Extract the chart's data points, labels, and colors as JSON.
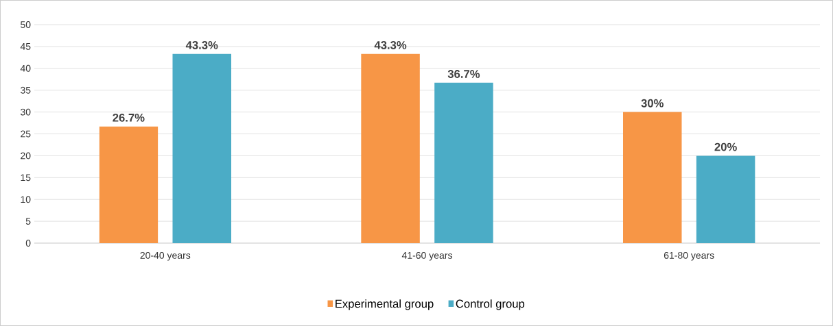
{
  "chart_data": {
    "type": "bar",
    "categories": [
      "20-40 years",
      "41-60 years",
      "61-80 years"
    ],
    "series": [
      {
        "name": "Experimental group",
        "color": "#f79646",
        "values": [
          26.7,
          43.3,
          30
        ],
        "value_labels": [
          "26.7%",
          "43.3%",
          "30%"
        ]
      },
      {
        "name": "Control group",
        "color": "#4bacc6",
        "values": [
          43.3,
          36.7,
          20
        ],
        "value_labels": [
          "43.3%",
          "36.7%",
          "20%"
        ]
      }
    ],
    "ylim": [
      0,
      50
    ],
    "yticks": [
      0,
      5,
      10,
      15,
      20,
      25,
      30,
      35,
      40,
      45,
      50
    ],
    "grid": "y",
    "legend": "bottom"
  }
}
